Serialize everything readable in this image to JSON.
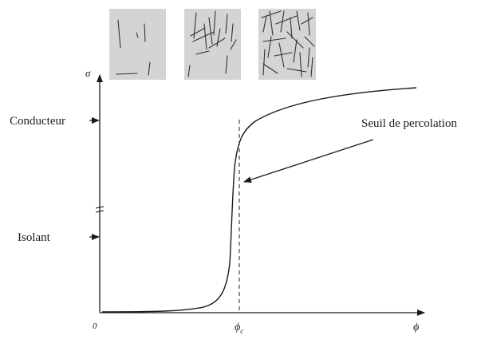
{
  "figure": {
    "y_axis_symbol": "σ",
    "x_axis_symbol": "ϕ",
    "origin_label": "0",
    "threshold_symbol": "ϕ",
    "threshold_subscript": "c"
  },
  "labels": {
    "conductor": "Conducteur",
    "insulator": "Isolant",
    "percolation_threshold": "Seuil de percolation"
  },
  "insets": [
    {
      "id": "low-density",
      "fill": "#d4d4d4"
    },
    {
      "id": "medium-density",
      "fill": "#d4d4d4"
    },
    {
      "id": "high-density",
      "fill": "#d4d4d4"
    }
  ],
  "colors": {
    "line": "#1a1a1a",
    "inset_background": "#d4d4d4"
  }
}
